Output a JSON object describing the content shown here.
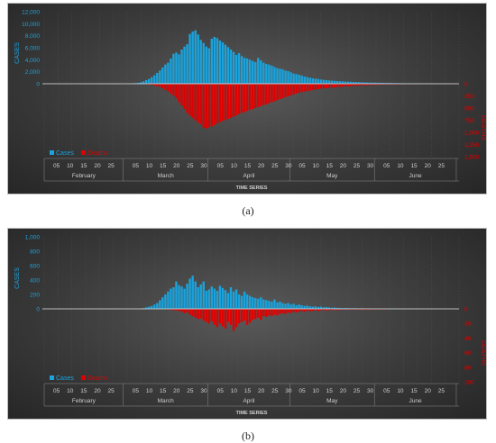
{
  "colors": {
    "cases": "#1aa3dc",
    "deaths": "#e00000",
    "axis_text": "#cfcfcf",
    "baseline": "#e8e8e8"
  },
  "chart_data": [
    {
      "panel": "a",
      "type": "bar",
      "caption": "(a)",
      "xlabel": "TIME SERIES",
      "ylabel_left": "CASES",
      "ylabel_right": "DEATHS",
      "left_ticks": [
        "12,000",
        "10,000",
        "8,000",
        "6,000",
        "4,000",
        "2,000",
        "0"
      ],
      "right_ticks": [
        "0",
        "250",
        "500",
        "750",
        "1,000",
        "1,250",
        "1,500"
      ],
      "ylim_cases": [
        0,
        12000
      ],
      "ylim_deaths": [
        0,
        1500
      ],
      "day_ticks": [
        "05",
        "10",
        "15",
        "20",
        "25",
        "05",
        "10",
        "15",
        "20",
        "25",
        "30",
        "05",
        "10",
        "15",
        "20",
        "25",
        "30",
        "05",
        "10",
        "15",
        "20",
        "25",
        "30",
        "05",
        "10",
        "15",
        "20",
        "25"
      ],
      "months": [
        "February",
        "March",
        "April",
        "May",
        "June"
      ],
      "legend": [
        "Cases",
        "Deaths"
      ],
      "start_date": "2020-02-01",
      "series": [
        {
          "name": "Cases",
          "values": [
            0,
            0,
            0,
            0,
            0,
            0,
            0,
            0,
            0,
            0,
            0,
            0,
            0,
            0,
            0,
            0,
            0,
            0,
            0,
            0,
            0,
            0,
            0,
            0,
            0,
            0,
            0,
            0,
            0,
            0,
            0,
            0,
            50,
            100,
            150,
            250,
            400,
            600,
            800,
            1100,
            1400,
            1800,
            2200,
            2700,
            3200,
            3500,
            4200,
            5000,
            5200,
            4900,
            5700,
            6200,
            6600,
            8300,
            8700,
            8900,
            8200,
            7300,
            6800,
            6200,
            5900,
            7500,
            7800,
            7600,
            7200,
            6900,
            6500,
            6100,
            5700,
            5300,
            4800,
            5100,
            4600,
            4300,
            4200,
            4000,
            3800,
            3600,
            4300,
            3900,
            3500,
            3300,
            3200,
            3000,
            2800,
            2600,
            2500,
            2400,
            2200,
            2100,
            1900,
            1700,
            1600,
            1500,
            1350,
            1200,
            1100,
            1000,
            900,
            850,
            800,
            700,
            650,
            600,
            550,
            520,
            480,
            450,
            420,
            400,
            370,
            350,
            330,
            300,
            280,
            260,
            240,
            220,
            210,
            200,
            190,
            180,
            170,
            160,
            150,
            140,
            130,
            120,
            110,
            100,
            95,
            90,
            85,
            80,
            75,
            70,
            65,
            60,
            55,
            50,
            50,
            45,
            40,
            40,
            35,
            30,
            30,
            25,
            25
          ]
        },
        {
          "name": "Deaths",
          "values": [
            0,
            0,
            0,
            0,
            0,
            0,
            0,
            0,
            0,
            0,
            0,
            0,
            0,
            0,
            0,
            0,
            0,
            0,
            0,
            0,
            0,
            0,
            0,
            0,
            0,
            0,
            0,
            0,
            0,
            0,
            0,
            0,
            0,
            0,
            0,
            0,
            5,
            10,
            15,
            25,
            35,
            50,
            70,
            90,
            130,
            160,
            200,
            250,
            300,
            380,
            450,
            520,
            600,
            660,
            700,
            750,
            800,
            830,
            900,
            920,
            900,
            880,
            850,
            820,
            790,
            760,
            750,
            720,
            700,
            680,
            650,
            620,
            600,
            580,
            560,
            540,
            520,
            500,
            480,
            460,
            440,
            420,
            400,
            380,
            360,
            340,
            320,
            300,
            280,
            260,
            240,
            220,
            200,
            185,
            170,
            160,
            150,
            140,
            130,
            120,
            110,
            100,
            95,
            90,
            85,
            80,
            75,
            70,
            65,
            60,
            56,
            52,
            48,
            44,
            40,
            37,
            34,
            31,
            28,
            26,
            24,
            22,
            20,
            18,
            17,
            16,
            15,
            14,
            13,
            12,
            11,
            10,
            9,
            9,
            8,
            8,
            7,
            7,
            6,
            6,
            5,
            5,
            5,
            4,
            4,
            4,
            3,
            3,
            3,
            3,
            3,
            3,
            3
          ]
        }
      ]
    },
    {
      "panel": "b",
      "type": "bar",
      "caption": "(b)",
      "xlabel": "TIME SERIES",
      "ylabel_left": "CASES",
      "ylabel_right": "DEATHS",
      "left_ticks": [
        "1,000",
        "800",
        "600",
        "400",
        "200",
        "0"
      ],
      "right_ticks": [
        "0",
        "20",
        "40",
        "60",
        "80",
        "100"
      ],
      "ylim_cases": [
        0,
        1000
      ],
      "ylim_deaths": [
        0,
        100
      ],
      "day_ticks": [
        "05",
        "10",
        "15",
        "20",
        "25",
        "05",
        "10",
        "15",
        "20",
        "25",
        "30",
        "05",
        "10",
        "15",
        "20",
        "25",
        "30",
        "05",
        "10",
        "15",
        "20",
        "25",
        "30",
        "05",
        "10",
        "15",
        "20",
        "25"
      ],
      "months": [
        "February",
        "March",
        "April",
        "May",
        "June"
      ],
      "legend": [
        "Cases",
        "Deaths"
      ],
      "start_date": "2020-02-01",
      "series": [
        {
          "name": "Cases",
          "values": [
            0,
            0,
            0,
            0,
            0,
            0,
            0,
            0,
            0,
            0,
            0,
            0,
            0,
            0,
            0,
            0,
            0,
            0,
            0,
            0,
            0,
            0,
            0,
            0,
            0,
            0,
            0,
            0,
            0,
            0,
            0,
            0,
            0,
            0,
            0,
            0,
            10,
            20,
            30,
            40,
            60,
            80,
            120,
            160,
            200,
            240,
            280,
            300,
            380,
            330,
            310,
            280,
            350,
            420,
            460,
            380,
            300,
            340,
            380,
            250,
            270,
            310,
            280,
            250,
            320,
            290,
            260,
            220,
            300,
            240,
            270,
            200,
            180,
            240,
            200,
            180,
            160,
            150,
            140,
            160,
            130,
            120,
            110,
            100,
            130,
            90,
            100,
            80,
            70,
            80,
            60,
            70,
            50,
            60,
            50,
            40,
            45,
            35,
            30,
            35,
            25,
            30,
            20,
            25,
            20,
            15,
            18,
            15,
            12,
            10,
            12,
            10,
            8,
            10,
            8,
            6,
            8,
            6,
            5,
            6,
            5,
            4,
            5,
            4,
            4,
            3,
            4,
            3,
            3,
            3,
            3,
            3,
            2,
            2,
            3,
            2,
            2,
            2,
            2,
            2,
            2,
            2,
            2,
            2,
            1,
            1,
            1,
            1,
            1,
            1,
            1,
            1,
            1
          ]
        },
        {
          "name": "Deaths",
          "values": [
            0,
            0,
            0,
            0,
            0,
            0,
            0,
            0,
            0,
            0,
            0,
            0,
            0,
            0,
            0,
            0,
            0,
            0,
            0,
            0,
            0,
            0,
            0,
            0,
            0,
            0,
            0,
            0,
            0,
            0,
            0,
            0,
            0,
            0,
            0,
            0,
            0,
            0,
            0,
            0,
            0,
            0,
            0,
            0,
            0,
            1,
            1,
            2,
            2,
            3,
            4,
            6,
            5,
            8,
            10,
            12,
            14,
            13,
            16,
            18,
            20,
            17,
            22,
            25,
            20,
            24,
            27,
            18,
            22,
            30,
            25,
            20,
            18,
            16,
            22,
            19,
            15,
            14,
            12,
            15,
            10,
            11,
            9,
            10,
            8,
            9,
            7,
            6,
            7,
            5,
            6,
            4,
            5,
            4,
            3,
            4,
            3,
            3,
            3,
            2,
            3,
            2,
            2,
            2,
            2,
            2,
            1,
            2,
            1,
            1,
            1,
            1,
            1,
            1,
            1,
            1,
            1,
            1,
            1,
            1,
            1,
            0,
            1,
            0,
            1,
            0,
            0,
            0,
            0,
            0,
            0,
            0,
            0,
            0,
            0,
            0,
            0,
            0,
            0,
            0,
            0,
            0,
            0,
            0,
            0,
            0,
            0,
            0,
            0,
            0,
            0,
            0,
            0
          ]
        }
      ]
    }
  ]
}
